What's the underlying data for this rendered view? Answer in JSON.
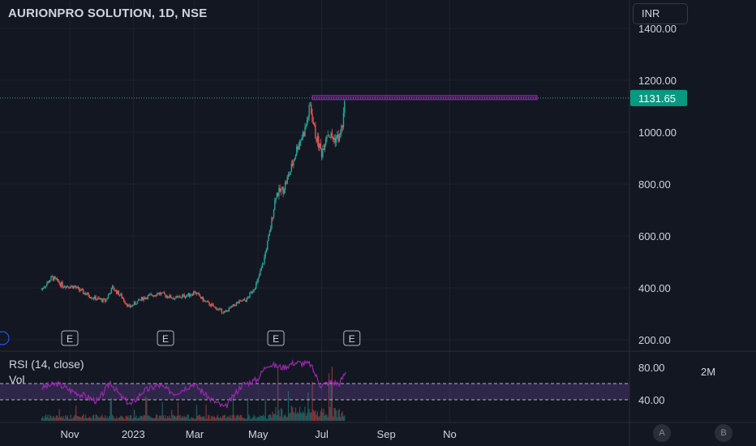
{
  "header": {
    "title": "AURIONPRO SOLUTION, 1D, NSE",
    "currency": "INR"
  },
  "last_price_label": "1131.65",
  "rsi_label": "RSI (14, close)",
  "volume_label": "Vol",
  "range_button": "2M",
  "bottom_buttons": [
    "A",
    "B"
  ],
  "earnings_markers": [
    "E",
    "E",
    "E",
    "E"
  ],
  "colors": {
    "background": "#131722",
    "up": "#26a69a",
    "down": "#ef5350",
    "price_label_bg": "#089981",
    "rsi_line": "#9c27b0",
    "level_line": "#9c27b0"
  },
  "chart_data": [
    {
      "type": "candlestick",
      "title": "AURIONPRO SOLUTION, 1D, NSE",
      "x_tick_labels": [
        "Nov",
        "2023",
        "Mar",
        "May",
        "Jul",
        "Sep",
        "No"
      ],
      "y_tick_labels": [
        "1400.00",
        "1200.00",
        "1000.00",
        "800.00",
        "600.00",
        "400.00",
        "200.00"
      ],
      "ylim": [
        200,
        1400
      ],
      "last_price": 1131.65,
      "resistance_level": 1131.65,
      "close_series": [
        {
          "date": "2022-10-05",
          "close": 395
        },
        {
          "date": "2022-10-15",
          "close": 440
        },
        {
          "date": "2022-10-25",
          "close": 410
        },
        {
          "date": "2022-11-05",
          "close": 405
        },
        {
          "date": "2022-11-15",
          "close": 380
        },
        {
          "date": "2022-11-25",
          "close": 360
        },
        {
          "date": "2022-12-05",
          "close": 350
        },
        {
          "date": "2022-12-12",
          "close": 400
        },
        {
          "date": "2022-12-20",
          "close": 370
        },
        {
          "date": "2022-12-28",
          "close": 325
        },
        {
          "date": "2023-01-10",
          "close": 360
        },
        {
          "date": "2023-01-25",
          "close": 380
        },
        {
          "date": "2023-02-10",
          "close": 360
        },
        {
          "date": "2023-02-25",
          "close": 375
        },
        {
          "date": "2023-03-01",
          "close": 385
        },
        {
          "date": "2023-03-10",
          "close": 350
        },
        {
          "date": "2023-03-20",
          "close": 325
        },
        {
          "date": "2023-03-30",
          "close": 305
        },
        {
          "date": "2023-04-10",
          "close": 340
        },
        {
          "date": "2023-04-20",
          "close": 355
        },
        {
          "date": "2023-04-30",
          "close": 420
        },
        {
          "date": "2023-05-06",
          "close": 500
        },
        {
          "date": "2023-05-12",
          "close": 610
        },
        {
          "date": "2023-05-18",
          "close": 760
        },
        {
          "date": "2023-05-25",
          "close": 780
        },
        {
          "date": "2023-06-01",
          "close": 850
        },
        {
          "date": "2023-06-08",
          "close": 950
        },
        {
          "date": "2023-06-15",
          "close": 1010
        },
        {
          "date": "2023-06-20",
          "close": 1100
        },
        {
          "date": "2023-06-25",
          "close": 990
        },
        {
          "date": "2023-07-01",
          "close": 920
        },
        {
          "date": "2023-07-06",
          "close": 1000
        },
        {
          "date": "2023-07-12",
          "close": 975
        },
        {
          "date": "2023-07-18",
          "close": 980
        },
        {
          "date": "2023-07-21",
          "close": 1030
        },
        {
          "date": "2023-07-24",
          "close": 1131.65
        }
      ]
    },
    {
      "type": "line",
      "title": "RSI (14, close)",
      "y_tick_labels": [
        "80.00",
        "40.00"
      ],
      "band": [
        40,
        60
      ],
      "series": [
        {
          "values": [
            {
              "date": "2022-10-05",
              "value": 55
            },
            {
              "date": "2022-10-20",
              "value": 60
            },
            {
              "date": "2022-11-01",
              "value": 52
            },
            {
              "date": "2022-11-15",
              "value": 45
            },
            {
              "date": "2022-11-28",
              "value": 38
            },
            {
              "date": "2022-12-10",
              "value": 62
            },
            {
              "date": "2022-12-20",
              "value": 44
            },
            {
              "date": "2022-12-30",
              "value": 34
            },
            {
              "date": "2023-01-10",
              "value": 50
            },
            {
              "date": "2023-01-25",
              "value": 58
            },
            {
              "date": "2023-02-10",
              "value": 48
            },
            {
              "date": "2023-02-28",
              "value": 60
            },
            {
              "date": "2023-03-15",
              "value": 42
            },
            {
              "date": "2023-03-30",
              "value": 30
            },
            {
              "date": "2023-04-15",
              "value": 58
            },
            {
              "date": "2023-04-30",
              "value": 65
            },
            {
              "date": "2023-05-10",
              "value": 84
            },
            {
              "date": "2023-05-25",
              "value": 80
            },
            {
              "date": "2023-06-05",
              "value": 86
            },
            {
              "date": "2023-06-20",
              "value": 84
            },
            {
              "date": "2023-06-30",
              "value": 58
            },
            {
              "date": "2023-07-10",
              "value": 62
            },
            {
              "date": "2023-07-18",
              "value": 60
            },
            {
              "date": "2023-07-24",
              "value": 74
            }
          ]
        }
      ]
    }
  ]
}
